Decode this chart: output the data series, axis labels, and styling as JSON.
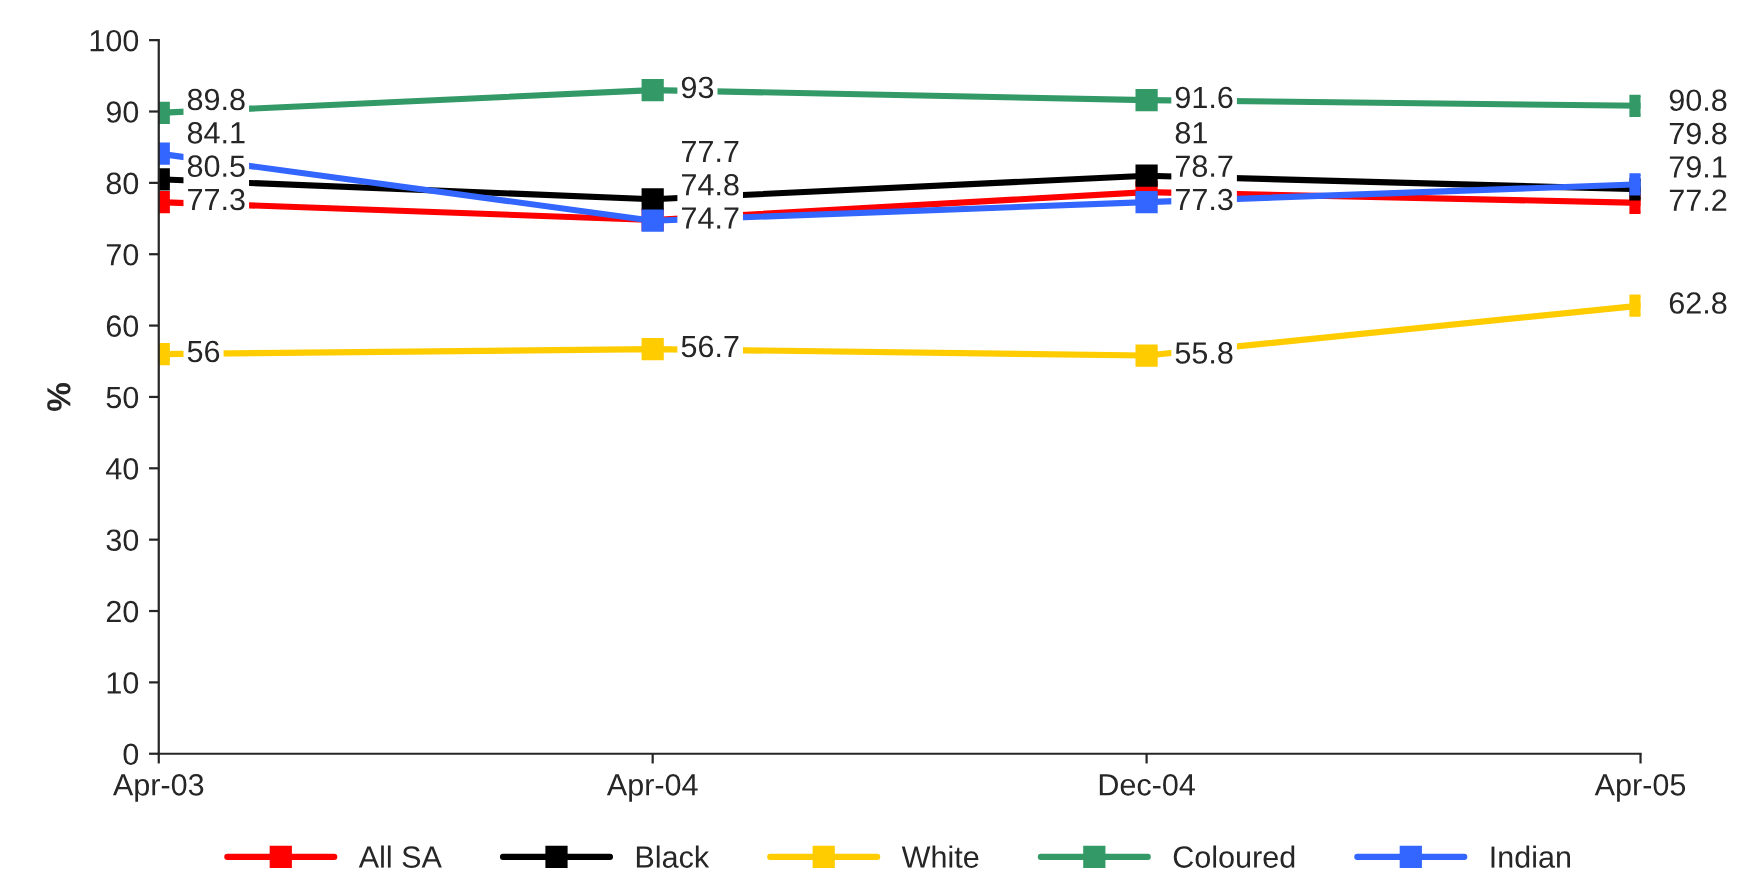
{
  "chart_data": {
    "type": "line",
    "ylabel": "%",
    "categories": [
      "Apr-03",
      "Apr-04",
      "Dec-04",
      "Apr-05"
    ],
    "series": [
      {
        "name": "All SA",
        "color": "#ff0000",
        "values": [
          77.3,
          74.8,
          78.7,
          77.2
        ]
      },
      {
        "name": "Black",
        "color": "#000000",
        "values": [
          80.5,
          77.7,
          81,
          79.1
        ]
      },
      {
        "name": "White",
        "color": "#ffcc00",
        "values": [
          56,
          56.7,
          55.8,
          62.8
        ]
      },
      {
        "name": "Coloured",
        "color": "#339966",
        "values": [
          89.8,
          93,
          91.6,
          90.8
        ]
      },
      {
        "name": "Indian",
        "color": "#3366ff",
        "values": [
          84.1,
          74.7,
          77.3,
          79.8
        ]
      }
    ],
    "ylim": [
      0,
      100
    ],
    "yticks": [
      0,
      10,
      20,
      30,
      40,
      50,
      60,
      70,
      80,
      90,
      100
    ],
    "marker": "square",
    "line_style": "solid",
    "data_labels": true,
    "grid": false,
    "legend": "bottom"
  }
}
